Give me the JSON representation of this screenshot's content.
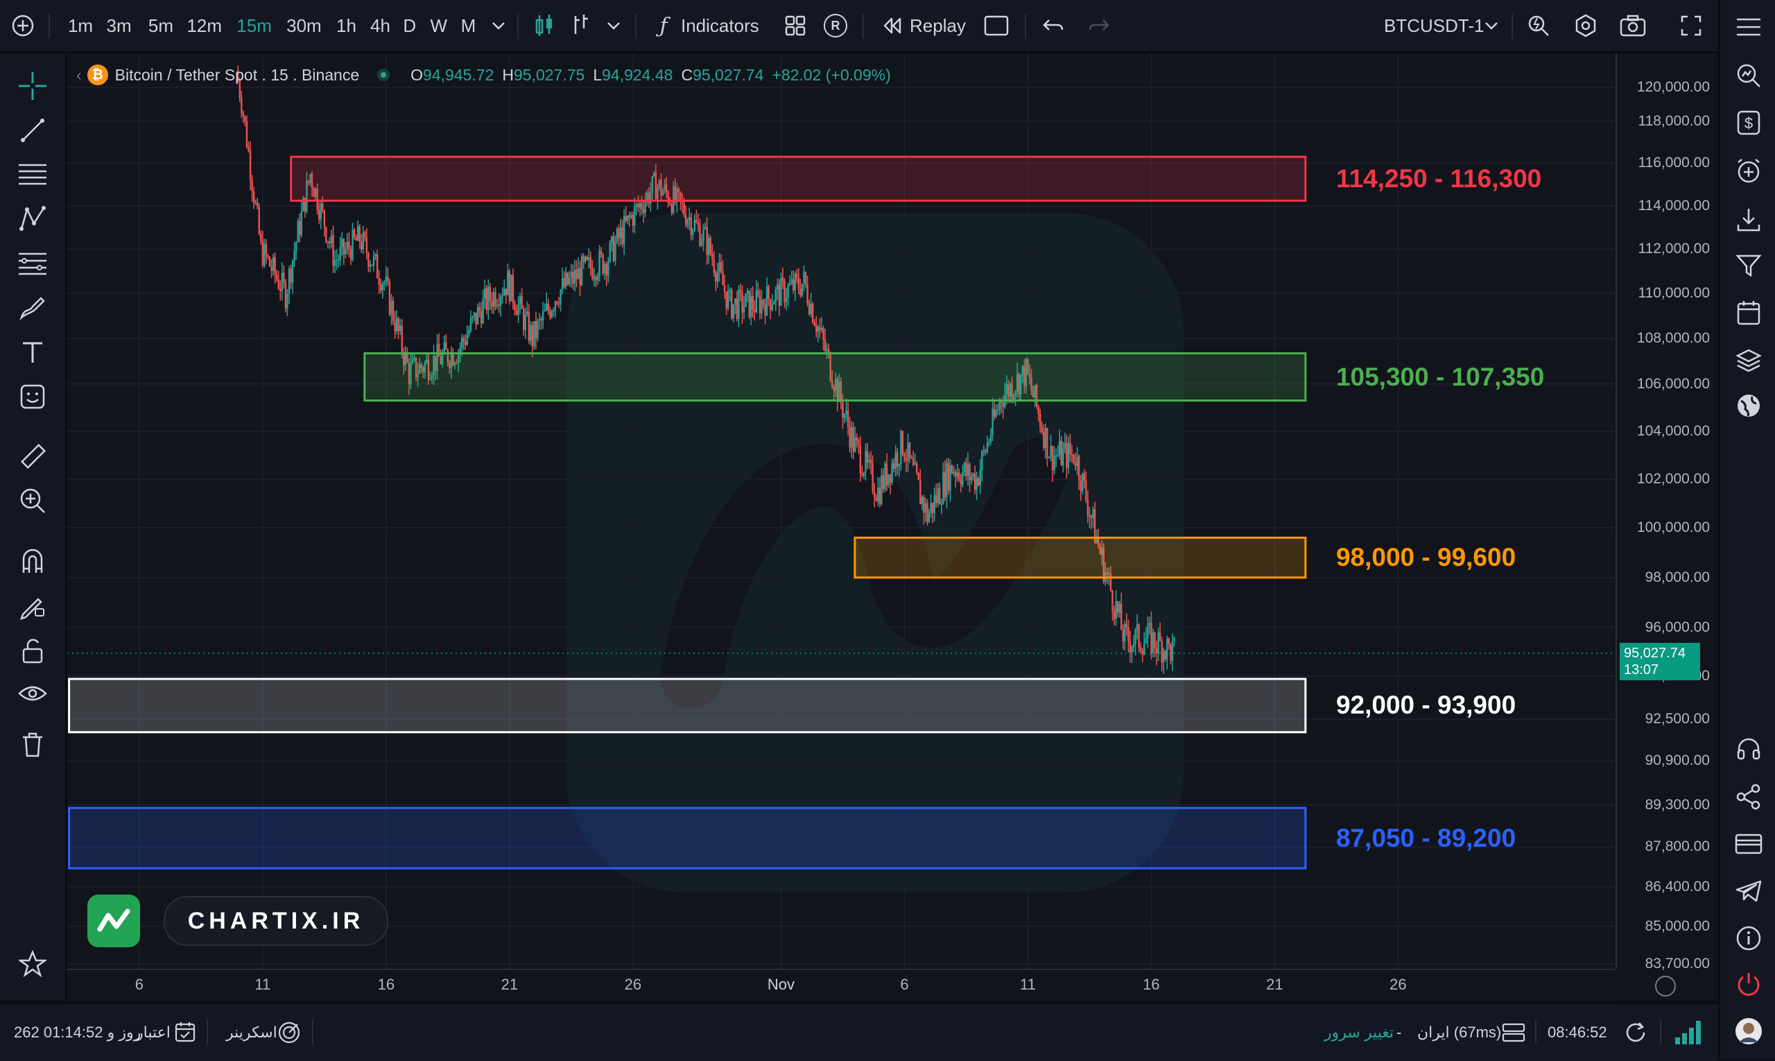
{
  "toolbar": {
    "intervals": [
      "1m",
      "3m",
      "5m",
      "12m",
      "15m",
      "30m",
      "1h",
      "4h",
      "D",
      "W",
      "M"
    ],
    "active_interval": "15m",
    "replay_badge": "R",
    "indicators_label": "Indicators",
    "replay_label": "Replay",
    "symbol": "BTCUSDT-1"
  },
  "legend": {
    "title": "Bitcoin / Tether Spot . 15 . Binance",
    "o_key": "O",
    "o_val": "94,945.72",
    "h_key": "H",
    "h_val": "95,027.75",
    "l_key": "L",
    "l_val": "94,924.48",
    "c_key": "C",
    "c_val": "95,027.74",
    "change": "+82.02 (+0.09%)"
  },
  "zones": [
    {
      "label": "114,250 - 116,300",
      "color": "#f23645",
      "low": 114250,
      "high": 116300
    },
    {
      "label": "105,300 - 107,350",
      "color": "#4caf50",
      "low": 105300,
      "high": 107350
    },
    {
      "label": "98,000 - 99,600",
      "color": "#ff9800",
      "low": 98000,
      "high": 99600
    },
    {
      "label": "92,000 - 93,900",
      "color": "#ffffff",
      "low": 92000,
      "high": 93900
    },
    {
      "label": "87,050 - 89,200",
      "color": "#2962ff",
      "low": 87050,
      "high": 89200
    }
  ],
  "price_axis": {
    "ticks": [
      "120,000.00",
      "118,000.00",
      "116,000.00",
      "114,000.00",
      "112,000.00",
      "110,000.00",
      "108,000.00",
      "106,000.00",
      "104,000.00",
      "102,000.00",
      "100,000.00",
      "98,000.00",
      "96,000.00",
      "94,000.00",
      "92,500.00",
      "90,900.00",
      "89,300.00",
      "87,800.00",
      "86,400.00",
      "85,000.00",
      "83,700.00"
    ]
  },
  "time_axis": {
    "ticks": [
      "6",
      "11",
      "16",
      "21",
      "26",
      "Nov",
      "6",
      "11",
      "16",
      "21",
      "26"
    ]
  },
  "last_price": {
    "value": "95,027.74",
    "countdown": "13:07"
  },
  "brand": {
    "name": "CHARTIX.IR"
  },
  "status_bar": {
    "credit_label": "اعتبار",
    "credit_value": "262 روز و 01:14:52",
    "screener_label": "اسکرینر",
    "server_change": "تغییر سرور",
    "dash": "-",
    "server_name": "ایران (67ms)",
    "clock": "08:46:52"
  },
  "colors": {
    "up": "#26a69a",
    "down": "#ef5350",
    "background": "#12141c",
    "accent": "#26a69a"
  },
  "chart_data": {
    "type": "candlestick",
    "symbol": "Bitcoin / Tether Spot",
    "interval": "15",
    "exchange": "Binance",
    "ylim": [
      83700,
      120000
    ],
    "x_ticks": [
      "6",
      "11",
      "16",
      "21",
      "26",
      "Nov",
      "6",
      "11",
      "16",
      "21",
      "26"
    ],
    "approx_close_path": [
      [
        "Oct 10",
        121000
      ],
      [
        "Oct 11",
        112000
      ],
      [
        "Oct 12",
        110000
      ],
      [
        "Oct 13",
        115500
      ],
      [
        "Oct 14",
        111500
      ],
      [
        "Oct 15",
        112500
      ],
      [
        "Oct 16",
        110500
      ],
      [
        "Oct 17",
        106500
      ],
      [
        "Oct 18",
        107000
      ],
      [
        "Oct 19",
        107500
      ],
      [
        "Oct 20",
        109500
      ],
      [
        "Oct 21",
        110500
      ],
      [
        "Oct 22",
        108000
      ],
      [
        "Oct 23",
        110000
      ],
      [
        "Oct 24",
        111000
      ],
      [
        "Oct 25",
        111500
      ],
      [
        "Oct 26",
        113500
      ],
      [
        "Oct 27",
        115000
      ],
      [
        "Oct 28",
        114000
      ],
      [
        "Oct 29",
        112500
      ],
      [
        "Oct 30",
        109500
      ],
      [
        "Oct 31",
        109500
      ],
      [
        "Nov 1",
        110000
      ],
      [
        "Nov 2",
        110500
      ],
      [
        "Nov 3",
        107000
      ],
      [
        "Nov 4",
        103500
      ],
      [
        "Nov 5",
        101500
      ],
      [
        "Nov 6",
        103500
      ],
      [
        "Nov 7",
        100500
      ],
      [
        "Nov 8",
        102500
      ],
      [
        "Nov 9",
        102000
      ],
      [
        "Nov 10",
        105500
      ],
      [
        "Nov 11",
        106500
      ],
      [
        "Nov 12",
        103000
      ],
      [
        "Nov 13",
        103000
      ],
      [
        "Nov 14",
        99000
      ],
      [
        "Nov 15",
        95500
      ],
      [
        "Nov 16",
        95500
      ],
      [
        "Nov 17",
        95000
      ]
    ]
  }
}
